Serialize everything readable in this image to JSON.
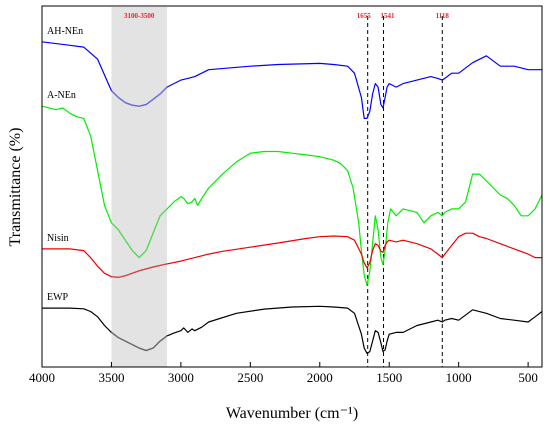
{
  "chart_data": {
    "type": "line",
    "title": "",
    "xlabel": "Wavenumber (cm⁻¹)",
    "ylabel": "Transmittance (%)",
    "xlim": [
      4000,
      400
    ],
    "x_reversed": true,
    "x_ticks": [
      4000,
      3500,
      3000,
      2500,
      2000,
      1500,
      1000,
      500
    ],
    "grid": false,
    "legend": "inline-labels",
    "shaded_region": {
      "from": 3500,
      "to": 3100,
      "label": "3100-3500",
      "color": "#e3e3e3"
    },
    "reference_lines": [
      {
        "x": 1655,
        "label": "1655"
      },
      {
        "x": 1541,
        "label": "1541"
      },
      {
        "x": 1118,
        "label": "1118"
      }
    ],
    "series": [
      {
        "name": "AH-NEn",
        "color": "#0000ff",
        "x": [
          4000,
          3800,
          3700,
          3600,
          3500,
          3450,
          3400,
          3350,
          3300,
          3250,
          3200,
          3150,
          3100,
          3050,
          3000,
          2950,
          2900,
          2850,
          2800,
          2500,
          2300,
          2000,
          1900,
          1800,
          1750,
          1700,
          1680,
          1660,
          1640,
          1620,
          1600,
          1580,
          1560,
          1545,
          1530,
          1515,
          1500,
          1450,
          1400,
          1300,
          1200,
          1150,
          1118,
          1100,
          1050,
          1000,
          900,
          800,
          700,
          600,
          500,
          400
        ],
        "y": [
          0.92,
          0.91,
          0.905,
          0.87,
          0.78,
          0.76,
          0.745,
          0.738,
          0.735,
          0.74,
          0.755,
          0.77,
          0.79,
          0.8,
          0.81,
          0.815,
          0.82,
          0.83,
          0.84,
          0.85,
          0.855,
          0.858,
          0.855,
          0.85,
          0.83,
          0.76,
          0.7,
          0.7,
          0.72,
          0.77,
          0.8,
          0.79,
          0.74,
          0.73,
          0.76,
          0.79,
          0.8,
          0.79,
          0.8,
          0.81,
          0.82,
          0.815,
          0.81,
          0.815,
          0.83,
          0.83,
          0.86,
          0.88,
          0.85,
          0.85,
          0.84,
          0.84
        ]
      },
      {
        "name": "A-NEn",
        "color": "#00ee00",
        "x": [
          4000,
          3900,
          3850,
          3800,
          3750,
          3700,
          3650,
          3600,
          3550,
          3500,
          3450,
          3400,
          3350,
          3300,
          3250,
          3200,
          3150,
          3100,
          3050,
          3000,
          2980,
          2950,
          2920,
          2900,
          2880,
          2850,
          2800,
          2700,
          2600,
          2500,
          2400,
          2300,
          2200,
          2100,
          2000,
          1900,
          1850,
          1800,
          1760,
          1720,
          1700,
          1680,
          1660,
          1640,
          1620,
          1600,
          1580,
          1560,
          1545,
          1530,
          1510,
          1490,
          1450,
          1400,
          1300,
          1250,
          1200,
          1150,
          1118,
          1100,
          1050,
          1000,
          950,
          900,
          850,
          800,
          750,
          700,
          650,
          600,
          550,
          500,
          450,
          400
        ],
        "y": [
          0.735,
          0.725,
          0.73,
          0.715,
          0.705,
          0.7,
          0.65,
          0.55,
          0.45,
          0.4,
          0.38,
          0.35,
          0.32,
          0.3,
          0.32,
          0.37,
          0.42,
          0.44,
          0.46,
          0.475,
          0.47,
          0.455,
          0.46,
          0.47,
          0.45,
          0.47,
          0.5,
          0.54,
          0.575,
          0.6,
          0.605,
          0.605,
          0.6,
          0.595,
          0.59,
          0.58,
          0.57,
          0.55,
          0.5,
          0.4,
          0.32,
          0.25,
          0.22,
          0.26,
          0.34,
          0.42,
          0.38,
          0.3,
          0.28,
          0.32,
          0.4,
          0.44,
          0.42,
          0.44,
          0.43,
          0.4,
          0.42,
          0.43,
          0.42,
          0.43,
          0.44,
          0.44,
          0.46,
          0.54,
          0.54,
          0.52,
          0.5,
          0.48,
          0.47,
          0.45,
          0.42,
          0.42,
          0.44,
          0.48
        ]
      },
      {
        "name": "Nisin",
        "color": "#ee0000",
        "x": [
          4000,
          3800,
          3700,
          3650,
          3600,
          3550,
          3500,
          3450,
          3400,
          3350,
          3300,
          3200,
          3100,
          3000,
          2900,
          2800,
          2700,
          2500,
          2300,
          2100,
          2000,
          1900,
          1800,
          1750,
          1700,
          1680,
          1660,
          1640,
          1620,
          1600,
          1580,
          1560,
          1545,
          1530,
          1515,
          1500,
          1450,
          1400,
          1300,
          1200,
          1150,
          1118,
          1100,
          1050,
          1000,
          950,
          900,
          850,
          800,
          700,
          600,
          500,
          450,
          400
        ],
        "y": [
          0.325,
          0.325,
          0.32,
          0.3,
          0.275,
          0.255,
          0.245,
          0.243,
          0.248,
          0.255,
          0.262,
          0.273,
          0.282,
          0.29,
          0.3,
          0.31,
          0.318,
          0.33,
          0.342,
          0.355,
          0.36,
          0.362,
          0.36,
          0.35,
          0.31,
          0.285,
          0.27,
          0.285,
          0.32,
          0.34,
          0.335,
          0.318,
          0.315,
          0.335,
          0.345,
          0.35,
          0.345,
          0.35,
          0.34,
          0.325,
          0.31,
          0.3,
          0.31,
          0.335,
          0.36,
          0.37,
          0.37,
          0.36,
          0.355,
          0.34,
          0.325,
          0.31,
          0.3,
          0.3
        ]
      },
      {
        "name": "EWP",
        "color": "#000000",
        "x": [
          4000,
          3800,
          3700,
          3650,
          3600,
          3550,
          3500,
          3450,
          3400,
          3350,
          3300,
          3250,
          3200,
          3150,
          3100,
          3050,
          3000,
          2980,
          2950,
          2920,
          2900,
          2850,
          2800,
          2600,
          2400,
          2200,
          2000,
          1900,
          1800,
          1750,
          1700,
          1680,
          1660,
          1640,
          1620,
          1600,
          1580,
          1560,
          1545,
          1530,
          1515,
          1500,
          1450,
          1400,
          1300,
          1200,
          1150,
          1118,
          1100,
          1050,
          1000,
          900,
          800,
          700,
          600,
          500,
          450,
          400
        ],
        "y": [
          0.155,
          0.155,
          0.153,
          0.145,
          0.13,
          0.105,
          0.085,
          0.07,
          0.06,
          0.05,
          0.04,
          0.033,
          0.04,
          0.06,
          0.075,
          0.083,
          0.09,
          0.098,
          0.085,
          0.095,
          0.09,
          0.1,
          0.115,
          0.14,
          0.152,
          0.158,
          0.16,
          0.158,
          0.155,
          0.14,
          0.08,
          0.04,
          0.025,
          0.03,
          0.06,
          0.09,
          0.085,
          0.055,
          0.03,
          0.035,
          0.06,
          0.08,
          0.085,
          0.085,
          0.105,
          0.115,
          0.12,
          0.115,
          0.12,
          0.125,
          0.12,
          0.15,
          0.14,
          0.125,
          0.12,
          0.115,
          0.13,
          0.145
        ]
      }
    ],
    "overlay_segments": [
      {
        "series": "AH-NEn",
        "from": 3500,
        "to": 3100,
        "color": "#6f6fd6"
      },
      {
        "series": "A-NEn",
        "from": 3500,
        "to": 3100,
        "color": "#5fd65f"
      },
      {
        "series": "Nisin",
        "from": 3500,
        "to": 3100,
        "color": "#c85050"
      },
      {
        "series": "EWP",
        "from": 3500,
        "to": 3100,
        "color": "#707070"
      }
    ]
  }
}
